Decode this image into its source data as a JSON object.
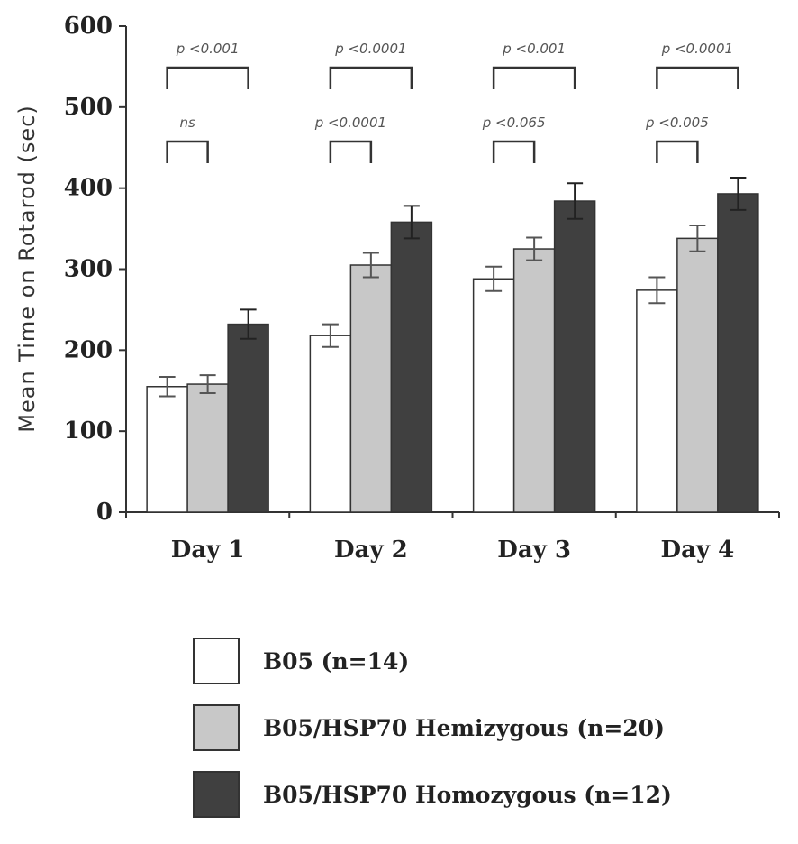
{
  "chart_data": {
    "type": "bar",
    "title": "",
    "xlabel": "",
    "ylabel": "Mean Time on Rotarod (sec)",
    "ylim": [
      0,
      600
    ],
    "yticks": [
      "0",
      "100",
      "200",
      "300",
      "400",
      "500",
      "600"
    ],
    "grid": false,
    "legend_position": "bottom",
    "categories": [
      "Day 1",
      "Day 2",
      "Day 3",
      "Day 4"
    ],
    "series": [
      {
        "name": "B05 (n=14)",
        "color": "#ffffff",
        "values": [
          155,
          218,
          288,
          274
        ],
        "errors": [
          12,
          14,
          15,
          16
        ]
      },
      {
        "name": "B05/HSP70 Hemizygous (n=20)",
        "color": "#c8c8c8",
        "values": [
          158,
          305,
          325,
          338
        ],
        "errors": [
          11,
          15,
          14,
          16
        ]
      },
      {
        "name": "B05/HSP70 Homozygous (n=12)",
        "color": "#404040",
        "values": [
          232,
          358,
          384,
          393
        ],
        "errors": [
          18,
          20,
          22,
          20
        ]
      }
    ],
    "annotations": [
      {
        "category": "Day 1",
        "from_series": 0,
        "to_series": 2,
        "text": "p <0.001",
        "level": "upper"
      },
      {
        "category": "Day 1",
        "from_series": 0,
        "to_series": 1,
        "text": "ns",
        "level": "lower"
      },
      {
        "category": "Day 2",
        "from_series": 0,
        "to_series": 2,
        "text": "p <0.0001",
        "level": "upper"
      },
      {
        "category": "Day 2",
        "from_series": 0,
        "to_series": 1,
        "text": "p <0.0001",
        "level": "lower"
      },
      {
        "category": "Day 3",
        "from_series": 0,
        "to_series": 2,
        "text": "p <0.001",
        "level": "upper"
      },
      {
        "category": "Day 3",
        "from_series": 0,
        "to_series": 1,
        "text": "p <0.065",
        "level": "lower"
      },
      {
        "category": "Day 4",
        "from_series": 0,
        "to_series": 2,
        "text": "p <0.0001",
        "level": "upper"
      },
      {
        "category": "Day 4",
        "from_series": 0,
        "to_series": 1,
        "text": "p <0.005",
        "level": "lower"
      }
    ]
  }
}
